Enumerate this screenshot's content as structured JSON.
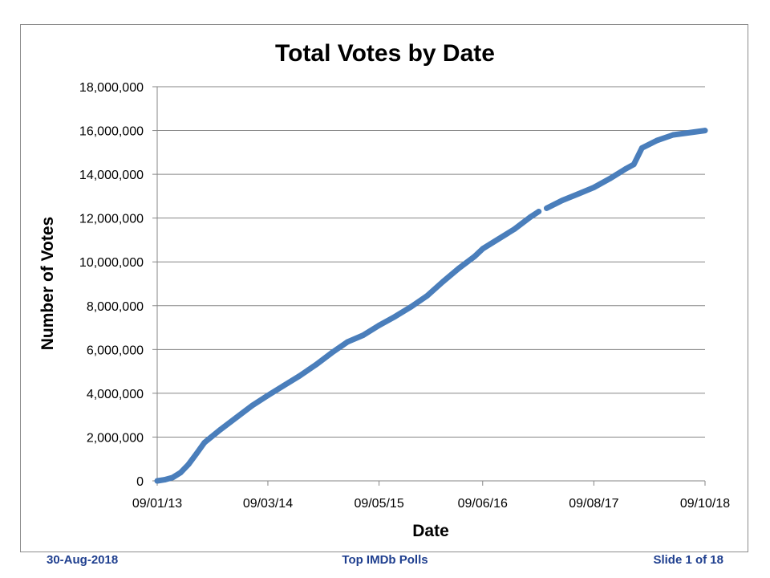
{
  "footer": {
    "date": "30-Aug-2018",
    "center": "Top IMDb Polls",
    "slide": "Slide 1 of 18"
  },
  "colors": {
    "series": "#4a7ebb",
    "grid": "#868686",
    "text": "#000000",
    "footer": "#1f3f8f"
  },
  "chart_data": {
    "type": "line",
    "title": "Total Votes by Date",
    "xlabel": "Date",
    "ylabel": "Number of Votes",
    "x_tick_labels": [
      "09/01/13",
      "09/03/14",
      "09/05/15",
      "09/06/16",
      "09/08/17",
      "09/10/18"
    ],
    "xlim": [
      "09/01/13",
      "09/10/18"
    ],
    "y_tick_labels": [
      "0",
      "2,000,000",
      "4,000,000",
      "6,000,000",
      "8,000,000",
      "10,000,000",
      "12,000,000",
      "14,000,000",
      "16,000,000",
      "18,000,000"
    ],
    "ylim": [
      0,
      18000000
    ],
    "grid": true,
    "legend": "none",
    "series": [
      {
        "segments": [
          [
            {
              "x": "09/01/13",
              "y": 0
            },
            {
              "x": "09/02/13",
              "y": 60000
            },
            {
              "x": "09/03/13",
              "y": 150000
            },
            {
              "x": "09/04/13",
              "y": 380000
            },
            {
              "x": "09/05/13",
              "y": 750000
            },
            {
              "x": "09/06/13",
              "y": 1250000
            },
            {
              "x": "09/07/13",
              "y": 1750000
            },
            {
              "x": "09/09/13",
              "y": 2350000
            },
            {
              "x": "09/11/13",
              "y": 2900000
            },
            {
              "x": "09/01/14",
              "y": 3450000
            },
            {
              "x": "09/03/14",
              "y": 3900000
            },
            {
              "x": "09/05/14",
              "y": 4350000
            },
            {
              "x": "09/07/14",
              "y": 4800000
            },
            {
              "x": "09/09/14",
              "y": 5300000
            },
            {
              "x": "09/11/14",
              "y": 5850000
            },
            {
              "x": "09/01/15",
              "y": 6350000
            },
            {
              "x": "09/03/15",
              "y": 6650000
            },
            {
              "x": "09/05/15",
              "y": 7100000
            },
            {
              "x": "09/07/15",
              "y": 7500000
            },
            {
              "x": "09/09/15",
              "y": 7950000
            },
            {
              "x": "09/11/15",
              "y": 8450000
            },
            {
              "x": "09/01/16",
              "y": 9100000
            },
            {
              "x": "09/03/16",
              "y": 9700000
            },
            {
              "x": "09/05/16",
              "y": 10250000
            },
            {
              "x": "09/06/16",
              "y": 10600000
            },
            {
              "x": "09/08/16",
              "y": 11050000
            },
            {
              "x": "09/10/16",
              "y": 11500000
            },
            {
              "x": "09/12/16",
              "y": 12050000
            },
            {
              "x": "10/01/17",
              "y": 12300000
            }
          ],
          [
            {
              "x": "09/02/17",
              "y": 12450000
            },
            {
              "x": "09/04/17",
              "y": 12800000
            },
            {
              "x": "09/06/17",
              "y": 13100000
            },
            {
              "x": "09/08/17",
              "y": 13400000
            },
            {
              "x": "09/10/17",
              "y": 13800000
            },
            {
              "x": "09/12/17",
              "y": 14250000
            },
            {
              "x": "09/01/18",
              "y": 14450000
            },
            {
              "x": "09/02/18",
              "y": 15200000
            },
            {
              "x": "09/04/18",
              "y": 15550000
            },
            {
              "x": "09/06/18",
              "y": 15800000
            },
            {
              "x": "09/10/18",
              "y": 16000000
            }
          ]
        ]
      }
    ]
  }
}
